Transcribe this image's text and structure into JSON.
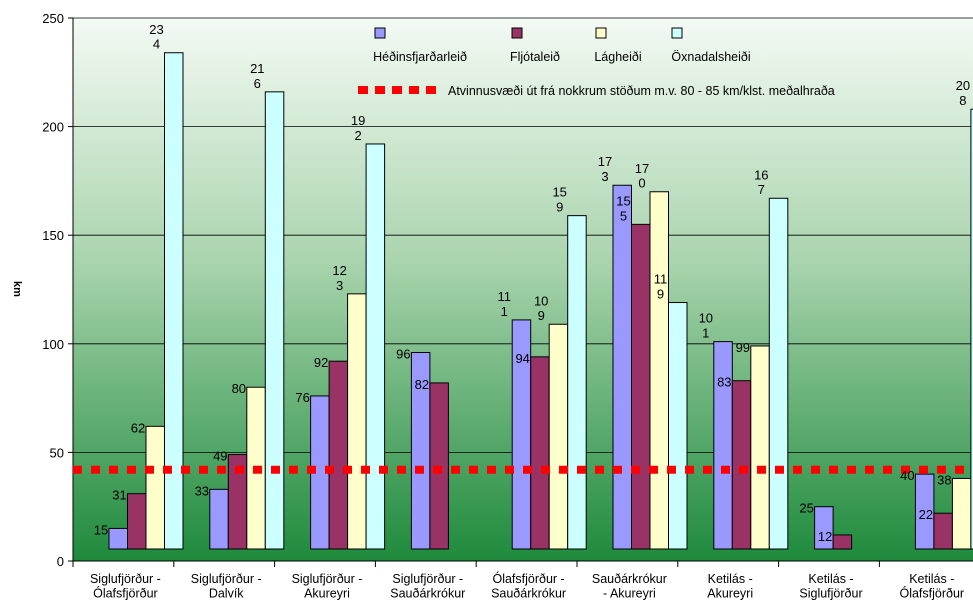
{
  "chart_data": {
    "type": "bar",
    "ylabel": "km",
    "ylim": [
      0,
      250
    ],
    "yticks": [
      0,
      50,
      100,
      150,
      200,
      250
    ],
    "grid": true,
    "legend_placement": "top-center",
    "categories": [
      [
        "Siglufjörður -",
        "Ólafsfjörður"
      ],
      [
        "Siglufjörður -",
        "Dalvík"
      ],
      [
        "Siglufjörður -",
        "Akureyri"
      ],
      [
        "Siglufjörður -",
        "Sauðárkrókur"
      ],
      [
        "Ólafsfjörður -",
        "Sauðárkrókur"
      ],
      [
        "Sauðárkrókur",
        "- Akureyri"
      ],
      [
        "Ketilás -",
        "Akureyri"
      ],
      [
        "Ketilás -",
        "Siglufjörður"
      ],
      [
        "Ketilás -",
        "Ólafsfjörður"
      ]
    ],
    "series": [
      {
        "name": "Héðinsfjarðarleið",
        "color": "#9999ff",
        "values": [
          15,
          33,
          76,
          96,
          111,
          173,
          101,
          25,
          40
        ],
        "labels": [
          [
            "15"
          ],
          [
            "33"
          ],
          [
            "76"
          ],
          [
            "96"
          ],
          [
            "11",
            "1"
          ],
          [
            "17",
            "3"
          ],
          [
            "10",
            "1"
          ],
          [
            "25"
          ],
          [
            "40"
          ]
        ]
      },
      {
        "name": "Fljótaleið",
        "color": "#993366",
        "values": [
          31,
          49,
          92,
          82,
          94,
          155,
          83,
          12,
          22
        ],
        "labels": [
          [
            "31"
          ],
          [
            "49"
          ],
          [
            "92"
          ],
          [
            "82"
          ],
          [
            "94"
          ],
          [
            "15",
            "5"
          ],
          [
            "83"
          ],
          [
            "12"
          ],
          [
            "22"
          ]
        ]
      },
      {
        "name": "Lágheiði",
        "color": "#ffffcc",
        "values": [
          62,
          80,
          123,
          null,
          109,
          170,
          99,
          null,
          38
        ],
        "labels": [
          [
            "62"
          ],
          [
            "80"
          ],
          [
            "12",
            "3"
          ],
          [],
          [
            "10",
            "9"
          ],
          [
            "17",
            "0"
          ],
          [
            "99"
          ],
          [],
          [
            "38"
          ]
        ]
      },
      {
        "name": "Öxnadalsheiði",
        "color": "#ccffff",
        "values": [
          234,
          216,
          192,
          null,
          159,
          119,
          167,
          null,
          208
        ],
        "labels": [
          [
            "23",
            "4"
          ],
          [
            "21",
            "6"
          ],
          [
            "19",
            "2"
          ],
          [],
          [
            "15",
            "9"
          ],
          [
            "11",
            "9"
          ],
          [
            "16",
            "7"
          ],
          [],
          [
            "20",
            "8"
          ]
        ]
      }
    ],
    "reference_line": {
      "label": "Atvinnusvæði út frá nokkrum stöðum m.v. 80 - 85 km/klst. meðalhraða",
      "value": 42,
      "color": "#ff0000"
    }
  }
}
